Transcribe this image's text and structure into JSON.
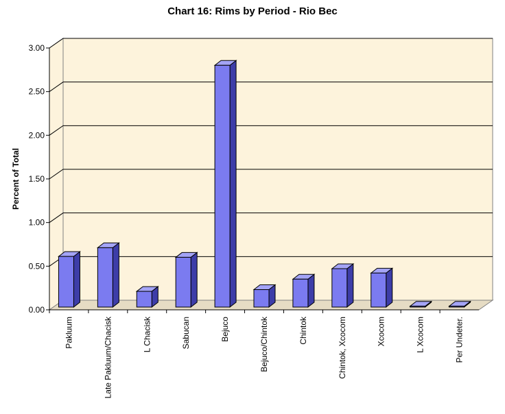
{
  "chart_data": {
    "type": "bar",
    "title": "Chart 16: Rims by Period - Rio Bec",
    "xlabel": "",
    "ylabel": "Percent of Total",
    "ylim": [
      0,
      3.0
    ],
    "yticks": [
      "0.00",
      "0.50",
      "1.00",
      "1.50",
      "2.00",
      "2.50",
      "3.00"
    ],
    "categories": [
      "Pakluum",
      "Late Pakluum/Chacisk",
      "L Chacisk",
      "Sabucan",
      "Bejuco",
      "Bejuco/Chintok",
      "Chintok",
      "Chintok, Xcocom",
      "Xcocom",
      "L Xcocom",
      "Per Undeter."
    ],
    "values": [
      0.58,
      0.68,
      0.18,
      0.57,
      2.77,
      0.2,
      0.32,
      0.44,
      0.39,
      0.01,
      0.01
    ],
    "grid": true,
    "style": "3d",
    "colors": {
      "bar_front": "#7b7bf0",
      "bar_side": "#3d3da8",
      "bar_top": "#a4a4f6",
      "wall": "#fdf3dc",
      "floor": "#e6dcc4",
      "gridline": "#000000"
    }
  }
}
